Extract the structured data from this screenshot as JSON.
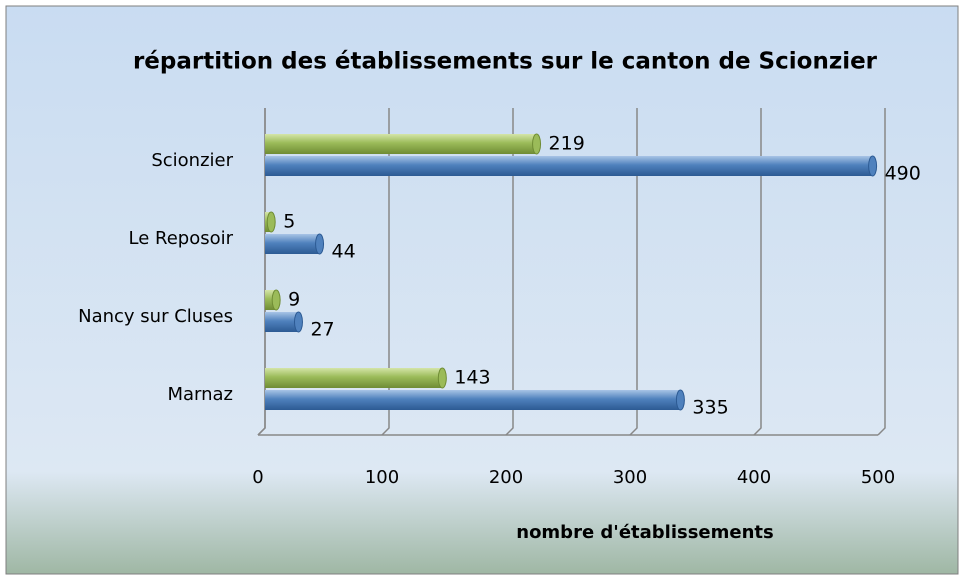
{
  "chart_data": {
    "type": "bar",
    "orientation": "horizontal",
    "title": "répartition des établissements sur le canton de Scionzier",
    "x_label": "nombre d'établissements",
    "categories": [
      "Scionzier",
      "Le Reposoir",
      "Nancy sur Cluses",
      "Marnaz"
    ],
    "series": [
      {
        "color": "#9bbb59",
        "values": [
          219,
          5,
          9,
          143
        ]
      },
      {
        "color": "#4f81bd",
        "values": [
          490,
          44,
          27,
          335
        ]
      }
    ],
    "xlim": [
      0,
      500
    ],
    "xticks": [
      0,
      100,
      200,
      300,
      400,
      500
    ],
    "grid": true
  }
}
